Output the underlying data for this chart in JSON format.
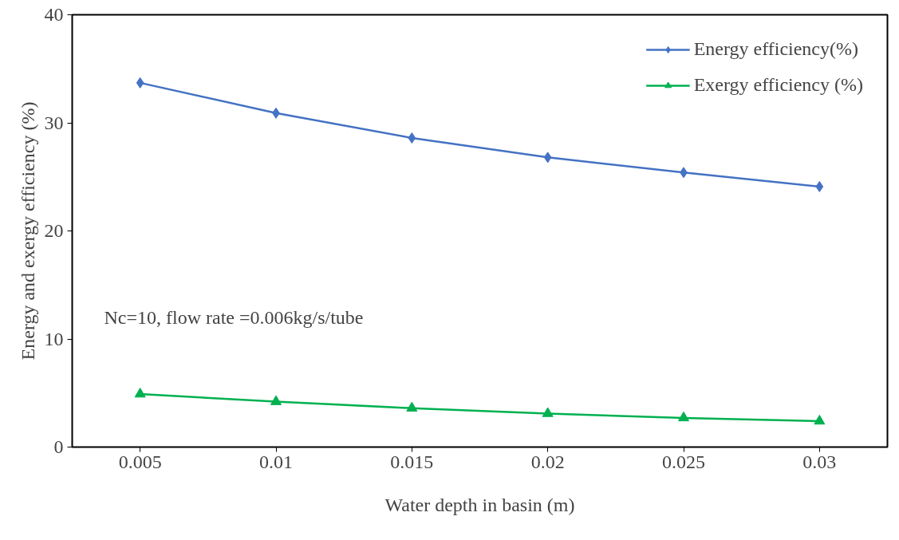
{
  "chart_data": {
    "type": "line",
    "xlabel": "Water depth in basin (m)",
    "ylabel": "Energy and exergy efficiency (%)",
    "categories": [
      "0.005",
      "0.01",
      "0.015",
      "0.02",
      "0.025",
      "0.03"
    ],
    "series": [
      {
        "name": "Energy efficiency(%)",
        "color": "#4472c4",
        "marker": "diamond",
        "values": [
          33.7,
          30.9,
          28.6,
          26.8,
          25.4,
          24.1
        ]
      },
      {
        "name": "Exergy efficiency (%)",
        "color": "#00b050",
        "marker": "triangle",
        "values": [
          4.9,
          4.2,
          3.6,
          3.1,
          2.7,
          2.4
        ]
      }
    ],
    "ylim": [
      0,
      40
    ],
    "yticks": [
      0,
      10,
      20,
      30,
      40
    ],
    "grid": false,
    "legend": "top right",
    "line_style": "solid",
    "annotations": [
      "Nc=10, flow rate =0.006kg/s/tube"
    ]
  }
}
